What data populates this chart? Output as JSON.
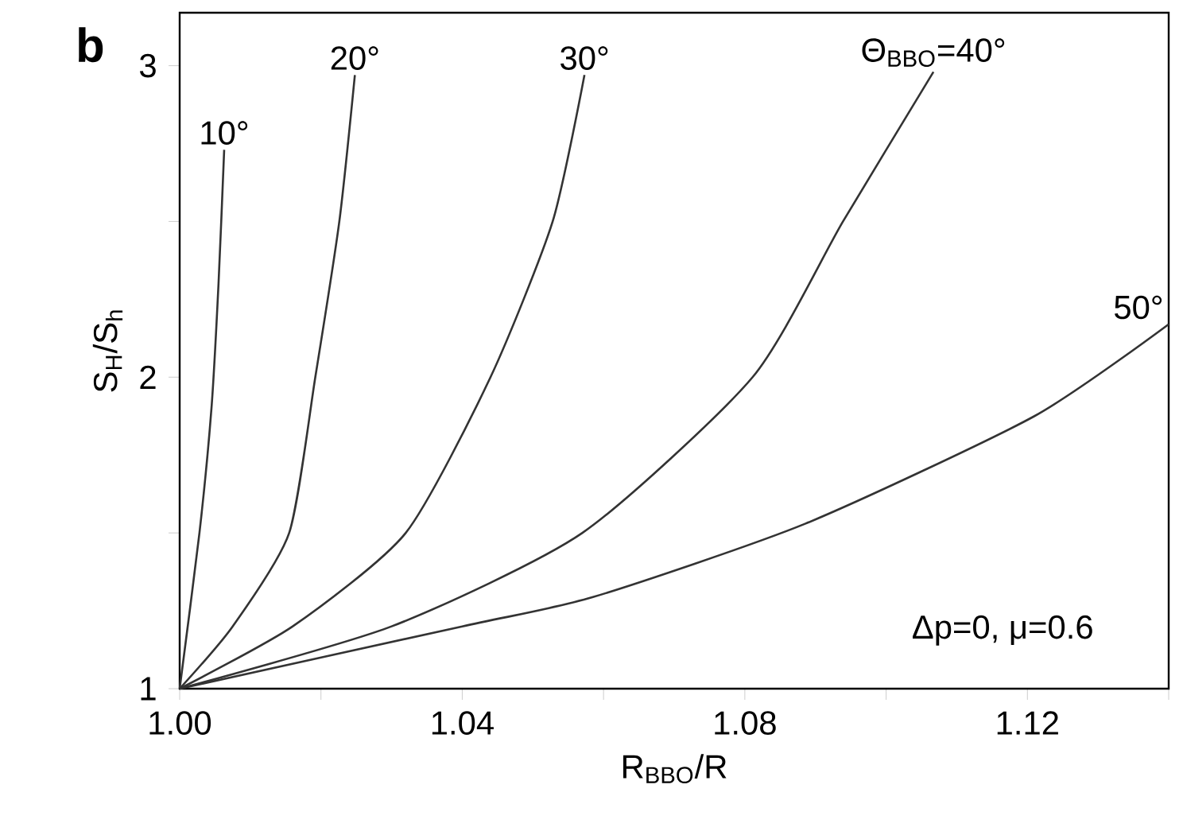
{
  "chart_data": {
    "type": "line",
    "xlabel": "R$_{BBO}$/R",
    "ylabel": "S$_{H}$/S$_{h}$",
    "xlim": [
      1.0,
      1.14
    ],
    "ylim": [
      1,
      3.17
    ],
    "xticks": [
      {
        "value": 1.0,
        "label": "1.00"
      },
      {
        "value": 1.02,
        "label": null
      },
      {
        "value": 1.04,
        "label": "1.04"
      },
      {
        "value": 1.06,
        "label": null
      },
      {
        "value": 1.08,
        "label": "1.08"
      },
      {
        "value": 1.1,
        "label": null
      },
      {
        "value": 1.12,
        "label": "1.12"
      },
      {
        "value": 1.14,
        "label": null
      }
    ],
    "yticks": [
      1,
      {
        "value": 1.5,
        "label": null
      },
      2,
      {
        "value": 2.5,
        "label": null
      },
      3
    ],
    "line_style": "solid",
    "series": [
      {
        "name": "10°",
        "color": "#333333",
        "x": [
          1.0,
          1.0028,
          1.0045,
          1.0055,
          1.0063
        ],
        "values": [
          1,
          1.5,
          1.9,
          2.3,
          2.73
        ]
      },
      {
        "name": "20°",
        "color": "#333333",
        "x": [
          1.0,
          1.0075,
          1.0155,
          1.0192,
          1.0226,
          1.0248
        ],
        "values": [
          1,
          1.2,
          1.5,
          2.0,
          2.5,
          2.97
        ]
      },
      {
        "name": "30°",
        "color": "#333333",
        "x": [
          1.0,
          1.016,
          1.032,
          1.044,
          1.0528,
          1.0573
        ],
        "values": [
          1,
          1.2,
          1.5,
          2.0,
          2.5,
          2.97
        ]
      },
      {
        "name": "Θ$_{BBO}$=40°",
        "color": "#333333",
        "x": [
          1.0,
          1.03,
          1.057,
          1.0811,
          1.0939,
          1.1067
        ],
        "values": [
          1,
          1.2,
          1.5,
          2.0,
          2.5,
          2.98
        ]
      },
      {
        "name": "50°",
        "color": "#333333",
        "x": [
          1.0,
          1.04,
          1.0585,
          1.0886,
          1.121,
          1.14
        ],
        "values": [
          1,
          1.2,
          1.294,
          1.53,
          1.875,
          2.17
        ]
      }
    ],
    "annotations": [
      "b",
      "Δp=0, μ=0.6"
    ]
  }
}
